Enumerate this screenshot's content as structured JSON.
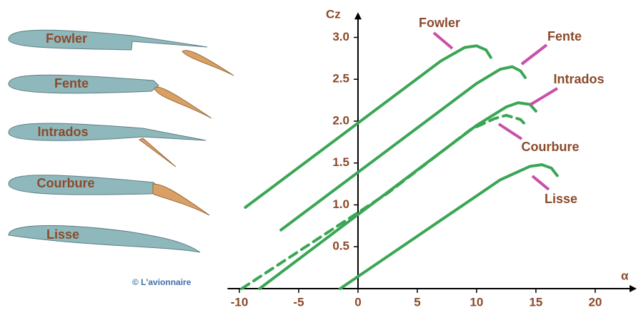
{
  "chart_data": {
    "type": "line",
    "x_label": "α",
    "y_label": "Cz",
    "credit": "© L'avionnaire",
    "xlim": [
      -11,
      23.5
    ],
    "ylim": [
      0,
      3.3
    ],
    "xticks": [
      -10,
      -5,
      0,
      5,
      10,
      15,
      20
    ],
    "yticks": [
      0.5,
      {
        "value": 1,
        "label": "1.0"
      },
      1.5,
      {
        "value": 2,
        "label": "2.0"
      },
      2.5,
      {
        "value": 3,
        "label": "3.0"
      }
    ],
    "series": [
      {
        "name": "Fowler",
        "color": "#3aa655",
        "dashed": false,
        "x": [
          -9.5,
          7,
          9,
          10,
          10.8,
          11.2
        ],
        "values": [
          0.97,
          2.72,
          2.88,
          2.9,
          2.85,
          2.76
        ]
      },
      {
        "name": "Fente",
        "color": "#3aa655",
        "dashed": false,
        "x": [
          -6.5,
          10,
          12,
          13,
          13.7,
          14.1
        ],
        "values": [
          0.7,
          2.45,
          2.62,
          2.65,
          2.6,
          2.52
        ]
      },
      {
        "name": "Intrados",
        "color": "#3aa655",
        "dashed": false,
        "x": [
          -8.3,
          10,
          12.5,
          13.5,
          14.5,
          15
        ],
        "values": [
          0,
          1.95,
          2.17,
          2.22,
          2.2,
          2.12
        ]
      },
      {
        "name": "Courbure",
        "color": "#3aa655",
        "dashed": true,
        "x": [
          -9.8,
          2.5,
          9.5,
          11.5,
          12.5,
          13.7,
          14.3
        ],
        "values": [
          0,
          1.14,
          1.9,
          2.03,
          2.07,
          2.02,
          1.93
        ]
      },
      {
        "name": "Lisse",
        "color": "#3aa655",
        "dashed": false,
        "x": [
          -1.5,
          12,
          14.5,
          15.5,
          16.3,
          16.8
        ],
        "values": [
          0,
          1.3,
          1.46,
          1.48,
          1.44,
          1.35
        ]
      }
    ]
  }
}
